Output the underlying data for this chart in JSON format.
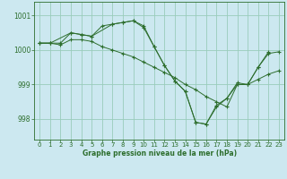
{
  "background_color": "#cce8f0",
  "grid_color": "#99ccbb",
  "line_color": "#2d6e2d",
  "xlabel": "Graphe pression niveau de la mer (hPa)",
  "ylim": [
    997.4,
    1001.4
  ],
  "xlim": [
    -0.5,
    23.5
  ],
  "yticks": [
    998,
    999,
    1000,
    1001
  ],
  "xticks": [
    0,
    1,
    2,
    3,
    4,
    5,
    6,
    7,
    8,
    9,
    10,
    11,
    12,
    13,
    14,
    15,
    16,
    17,
    18,
    19,
    20,
    21,
    22,
    23
  ],
  "series": [
    {
      "x": [
        0,
        1,
        2,
        3,
        4,
        5,
        6,
        7,
        8,
        9,
        10,
        11,
        12,
        13,
        14,
        15,
        16,
        17,
        18,
        19,
        20,
        21,
        22,
        23
      ],
      "y": [
        1000.2,
        1000.2,
        1000.2,
        1000.5,
        1000.45,
        1000.4,
        1000.7,
        1000.75,
        1000.8,
        1000.85,
        1000.7,
        1000.1,
        999.55,
        999.1,
        998.8,
        997.9,
        997.85,
        998.4,
        998.6,
        999.05,
        999.0,
        999.5,
        999.9,
        999.95
      ]
    },
    {
      "x": [
        0,
        1,
        2,
        3,
        4,
        5,
        6,
        7,
        8,
        9,
        10,
        11,
        12,
        13,
        14,
        15,
        16,
        17,
        18,
        19,
        20,
        21,
        22,
        23
      ],
      "y": [
        1000.2,
        1000.2,
        1000.15,
        1000.3,
        1000.3,
        1000.25,
        1000.1,
        1000.0,
        999.9,
        999.8,
        999.65,
        999.5,
        999.35,
        999.2,
        999.0,
        998.85,
        998.65,
        998.5,
        998.35,
        999.0,
        999.0,
        999.15,
        999.3,
        999.4
      ]
    },
    {
      "x": [
        0,
        1,
        3,
        4,
        5,
        7,
        8,
        9,
        10,
        11,
        12,
        13,
        14,
        15,
        16,
        17,
        18,
        19,
        20,
        21,
        22
      ],
      "y": [
        1000.2,
        1000.2,
        1000.5,
        1000.45,
        1000.4,
        1000.75,
        1000.8,
        1000.85,
        1000.65,
        1000.1,
        999.55,
        999.1,
        998.8,
        997.9,
        997.85,
        998.35,
        998.6,
        999.0,
        999.0,
        999.5,
        999.95
      ]
    }
  ]
}
